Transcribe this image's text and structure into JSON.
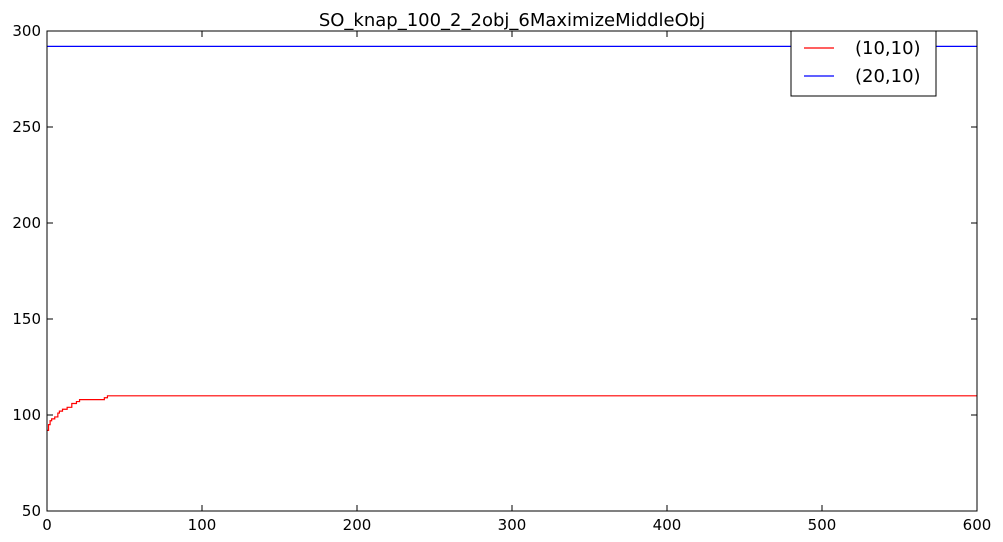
{
  "chart_data": {
    "type": "line",
    "title": "SO_knap_100_2_2obj_6MaximizeMiddleObj",
    "xlabel": "",
    "ylabel": "",
    "xlim": [
      0,
      600
    ],
    "ylim": [
      50,
      300
    ],
    "xticks": [
      0,
      100,
      200,
      300,
      400,
      500,
      600
    ],
    "yticks": [
      50,
      100,
      150,
      200,
      250,
      300
    ],
    "grid": false,
    "legend_position": "top-right",
    "series": [
      {
        "name": "(10,10)",
        "color": "#ff0000",
        "points": [
          [
            0,
            92
          ],
          [
            1,
            95
          ],
          [
            2,
            97
          ],
          [
            3,
            98
          ],
          [
            5,
            99
          ],
          [
            7,
            101
          ],
          [
            8,
            102
          ],
          [
            10,
            103
          ],
          [
            13,
            104
          ],
          [
            16,
            106
          ],
          [
            19,
            107
          ],
          [
            21,
            108
          ],
          [
            37,
            109
          ],
          [
            39,
            110
          ],
          [
            600,
            110
          ]
        ]
      },
      {
        "name": "(20,10)",
        "color": "#0000ff",
        "points": [
          [
            0,
            292
          ],
          [
            600,
            292
          ]
        ]
      }
    ]
  }
}
